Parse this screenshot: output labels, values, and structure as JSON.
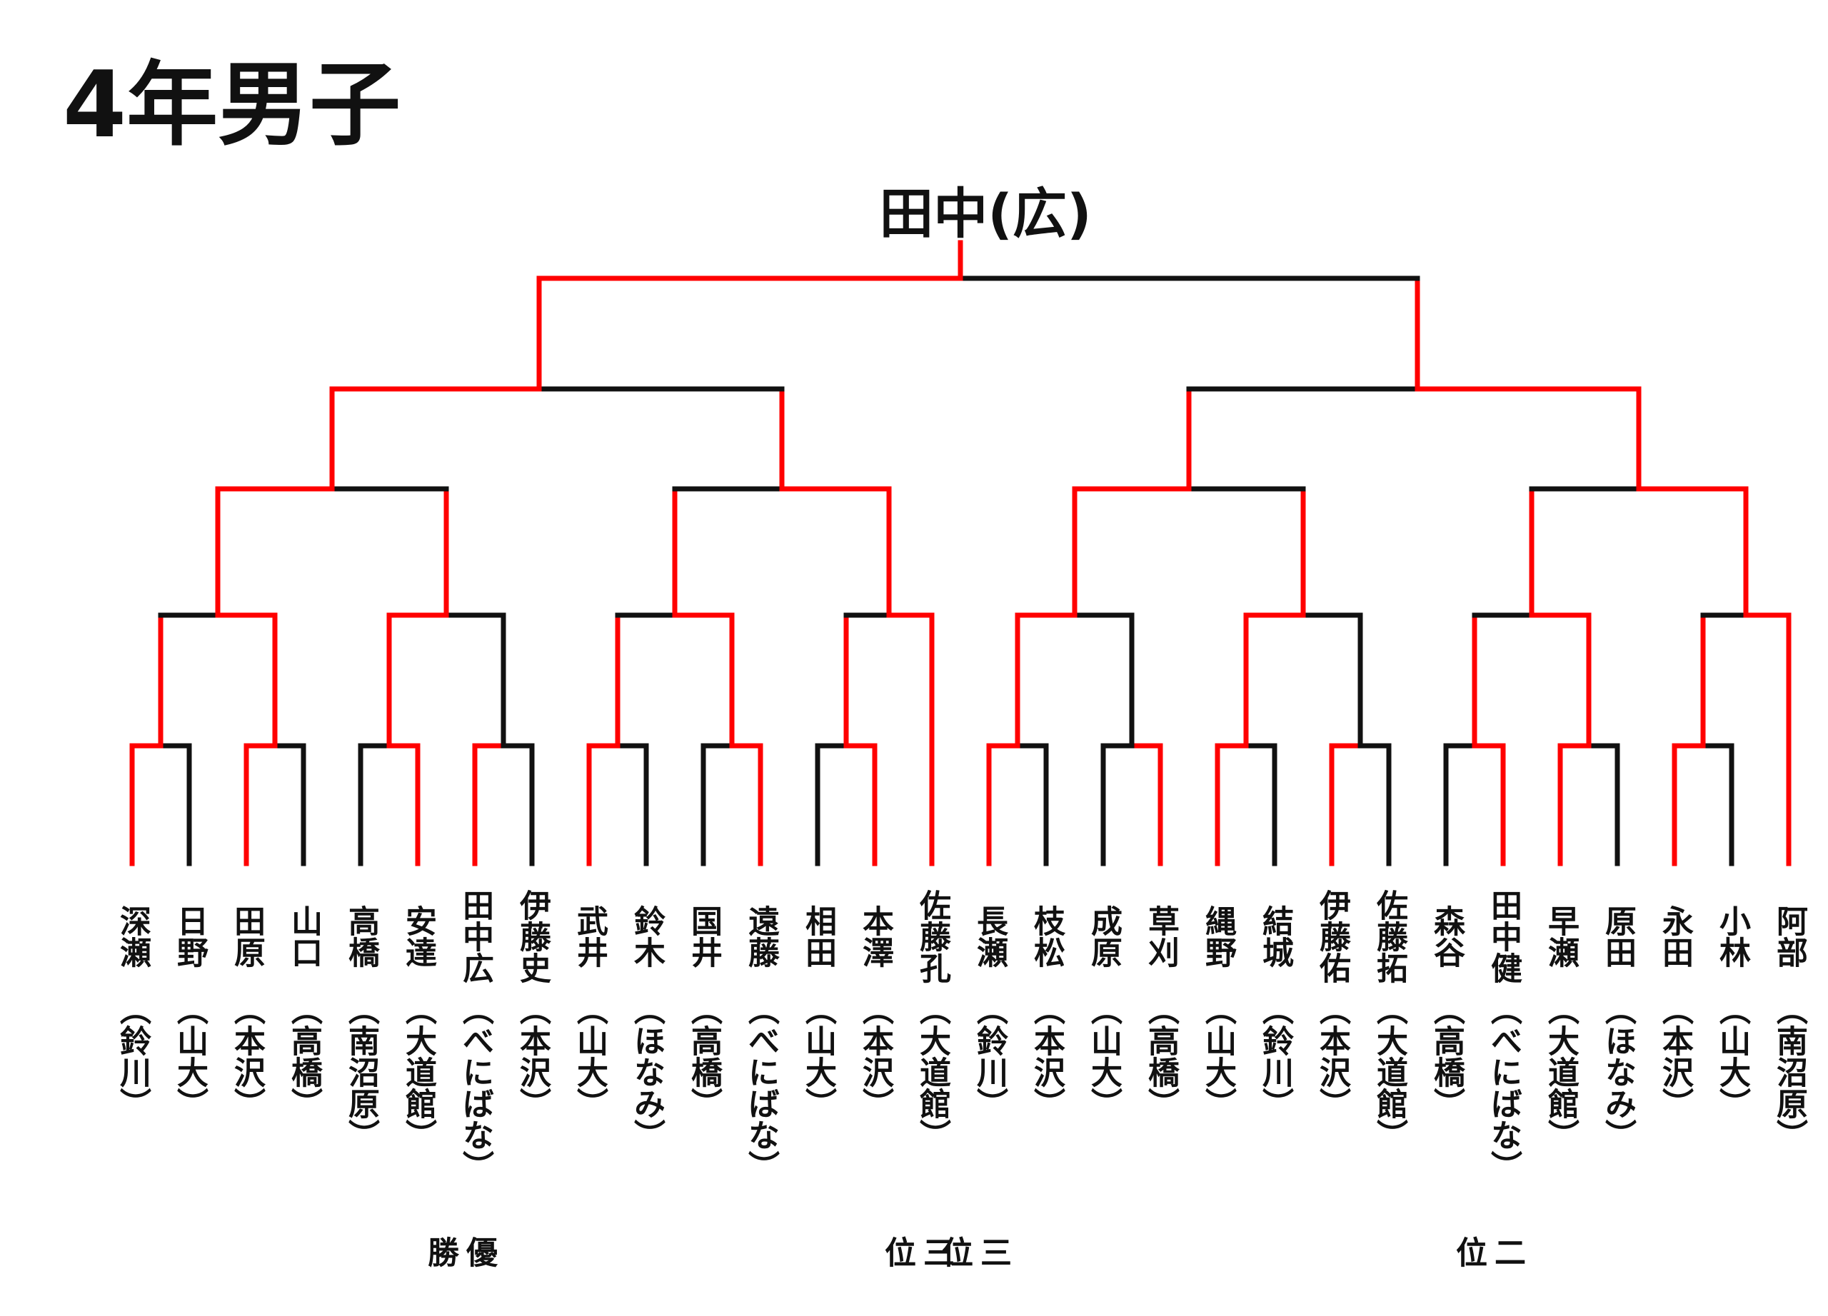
{
  "title": "4年男子",
  "champion_label": "田中(広)",
  "colors": {
    "winner_line": "#ff0000",
    "line": "#111111",
    "text": "#111111"
  },
  "players": [
    {
      "name": "深瀬",
      "school": "（鈴川）",
      "result": ""
    },
    {
      "name": "日野",
      "school": "（山大）",
      "result": ""
    },
    {
      "name": "田原",
      "school": "（本沢）",
      "result": ""
    },
    {
      "name": "山口",
      "school": "（高橋）",
      "result": ""
    },
    {
      "name": "高橋",
      "school": "（南沼原）",
      "result": ""
    },
    {
      "name": "安達",
      "school": "（大道館）",
      "result": ""
    },
    {
      "name": "田中広",
      "school": "（べにばな）",
      "result": "優勝"
    },
    {
      "name": "伊藤史",
      "school": "（本沢）",
      "result": ""
    },
    {
      "name": "武井",
      "school": "（山大）",
      "result": ""
    },
    {
      "name": "鈴木",
      "school": "（ほなみ）",
      "result": ""
    },
    {
      "name": "国井",
      "school": "（高橋）",
      "result": ""
    },
    {
      "name": "遠藤",
      "school": "（べにばな）",
      "result": ""
    },
    {
      "name": "相田",
      "school": "（山大）",
      "result": ""
    },
    {
      "name": "本澤",
      "school": "（本沢）",
      "result": ""
    },
    {
      "name": "佐藤孔",
      "school": "（大道館）",
      "result": "三位"
    },
    {
      "name": "長瀬",
      "school": "（鈴川）",
      "result": "三位"
    },
    {
      "name": "枝松",
      "school": "（本沢）",
      "result": ""
    },
    {
      "name": "成原",
      "school": "（山大）",
      "result": ""
    },
    {
      "name": "草刈",
      "school": "（高橋）",
      "result": ""
    },
    {
      "name": "縄野",
      "school": "（山大）",
      "result": ""
    },
    {
      "name": "結城",
      "school": "（鈴川）",
      "result": ""
    },
    {
      "name": "伊藤佑",
      "school": "（本沢）",
      "result": ""
    },
    {
      "name": "佐藤拓",
      "school": "（大道館）",
      "result": ""
    },
    {
      "name": "森谷",
      "school": "（高橋）",
      "result": ""
    },
    {
      "name": "田中健",
      "school": "（べにばな）",
      "result": "二位"
    },
    {
      "name": "早瀬",
      "school": "（大道館）",
      "result": ""
    },
    {
      "name": "原田",
      "school": "（ほなみ）",
      "result": ""
    },
    {
      "name": "永田",
      "school": "（本沢）",
      "result": ""
    },
    {
      "name": "小林",
      "school": "（山大）",
      "result": ""
    },
    {
      "name": "阿部",
      "school": "（南沼原）",
      "result": ""
    }
  ]
}
